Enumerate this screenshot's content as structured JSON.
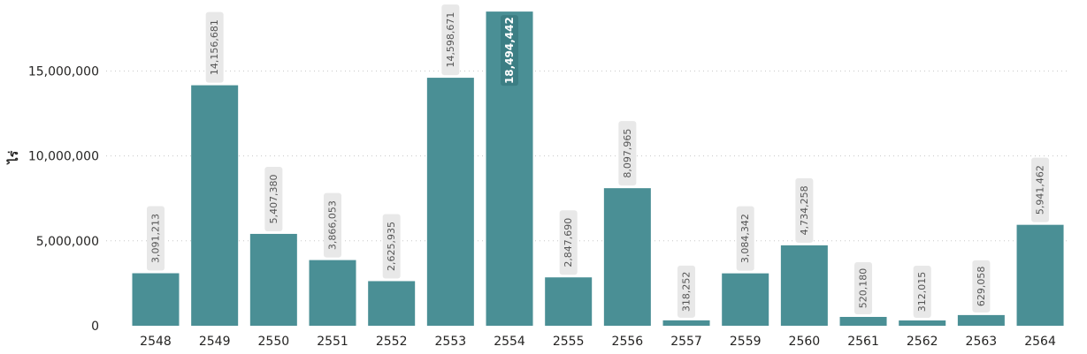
{
  "chart_data": {
    "type": "bar",
    "ylabel": "ไร่",
    "xlabel": "",
    "categories": [
      "2548",
      "2549",
      "2550",
      "2551",
      "2552",
      "2553",
      "2554",
      "2555",
      "2556",
      "2557",
      "2559",
      "2560",
      "2561",
      "2562",
      "2563",
      "2564"
    ],
    "values": [
      3091213,
      14156681,
      5407380,
      3866053,
      2625935,
      14598671,
      18494442,
      2847690,
      8097965,
      318252,
      3084342,
      4734258,
      520180,
      312015,
      629058,
      5941462
    ],
    "value_labels": [
      "3,091,213",
      "14,156,681",
      "5,407,380",
      "3,866,053",
      "2,625,935",
      "14,598,671",
      "18,494,442",
      "2,847,690",
      "8,097,965",
      "318,252",
      "3,084,342",
      "4,734,258",
      "520,180",
      "312,015",
      "629,058",
      "5,941,462"
    ],
    "yticks": [
      0,
      5000000,
      10000000,
      15000000
    ],
    "ytick_labels": [
      "0",
      "5,000,000",
      "10,000,000",
      "15,000,000"
    ],
    "ylim": [
      0,
      18500000
    ],
    "highlight_index": 6,
    "grid": true,
    "bar_color": "#4A8F95",
    "label_bg_color": "#E8E8E8",
    "highlight_label_bg_color": "#3C7E84"
  }
}
